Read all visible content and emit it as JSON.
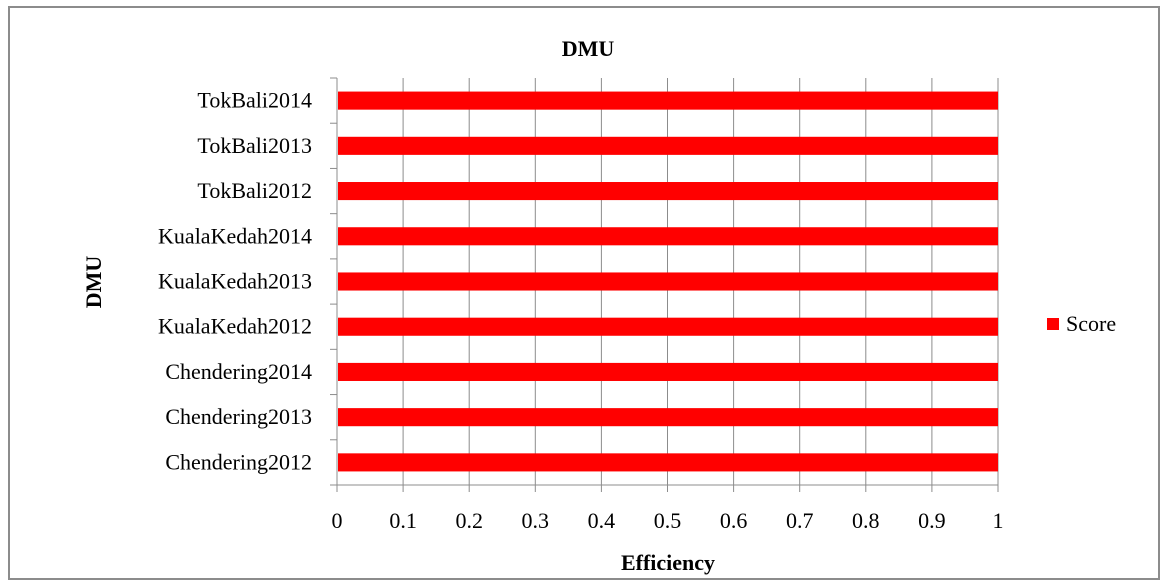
{
  "chart_data": {
    "type": "bar",
    "orientation": "horizontal",
    "title": "DMU",
    "xlabel": "Efficiency",
    "ylabel": "DMU",
    "categories": [
      "Chendering2012",
      "Chendering2013",
      "Chendering2014",
      "KualaKedah2012",
      "KualaKedah2013",
      "KualaKedah2014",
      "TokBali2012",
      "TokBali2013",
      "TokBali2014"
    ],
    "series": [
      {
        "name": "Score",
        "values": [
          1,
          1,
          1,
          1,
          1,
          1,
          1,
          1,
          1
        ],
        "color": "#ff0000"
      }
    ],
    "xlim": [
      0,
      1
    ],
    "xticks": [
      "0",
      "0.1",
      "0.2",
      "0.3",
      "0.4",
      "0.5",
      "0.6",
      "0.7",
      "0.8",
      "0.9",
      "1"
    ],
    "grid": "vertical",
    "legend": "right"
  }
}
